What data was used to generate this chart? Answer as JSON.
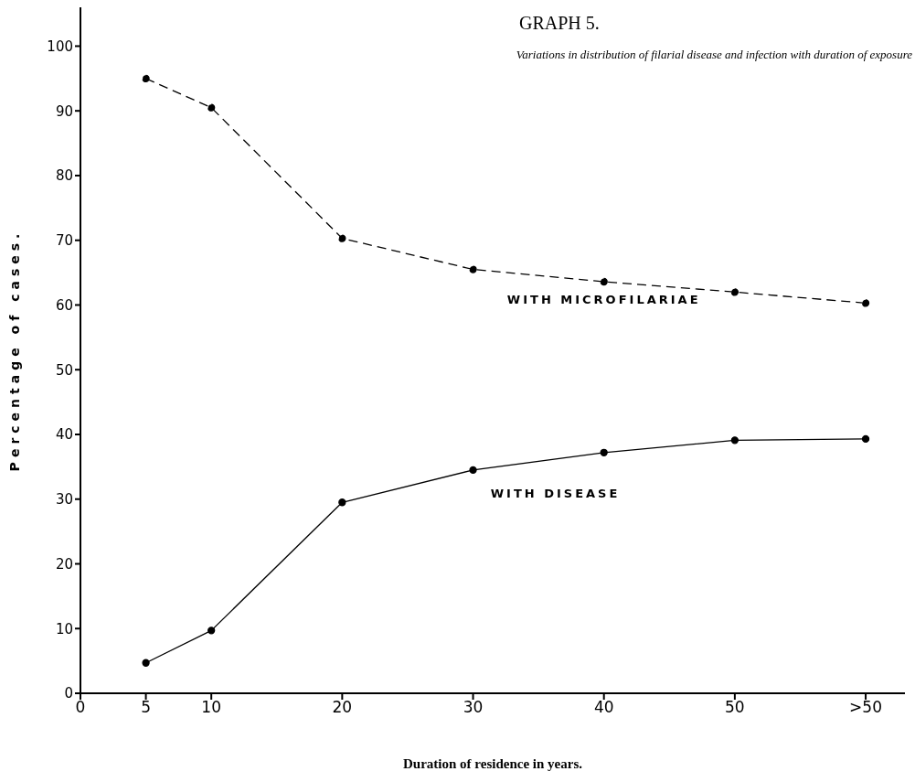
{
  "chart_data": {
    "type": "line",
    "title": "GRAPH 5.",
    "subtitle": "Variations in distribution of filarial disease and infection with duration of exposure",
    "xlabel": "Duration of residence in years.",
    "ylabel": "Percentage of cases.",
    "x": [
      5,
      10,
      20,
      30,
      40,
      50,
      60
    ],
    "series": [
      {
        "name": "WITH MICROFILARIAE",
        "color": "#000000",
        "line_style": "dashed",
        "values": [
          95,
          90.5,
          70.3,
          65.5,
          63.6,
          62,
          60.3
        ]
      },
      {
        "name": "WITH DISEASE",
        "color": "#000000",
        "line_style": "solid",
        "values": [
          4.7,
          9.7,
          29.5,
          34.5,
          37.2,
          39.1,
          39.3
        ]
      }
    ],
    "xlim": [
      0,
      63
    ],
    "xticks": [
      0,
      5,
      10,
      20,
      30,
      40,
      50,
      {
        "value": 60,
        "label": ">50"
      }
    ],
    "ylim": [
      0,
      106
    ],
    "yticks": [
      0,
      10,
      20,
      30,
      40,
      50,
      60,
      70,
      80,
      90,
      100
    ],
    "grid": false,
    "legend": false,
    "marker": "circle"
  }
}
